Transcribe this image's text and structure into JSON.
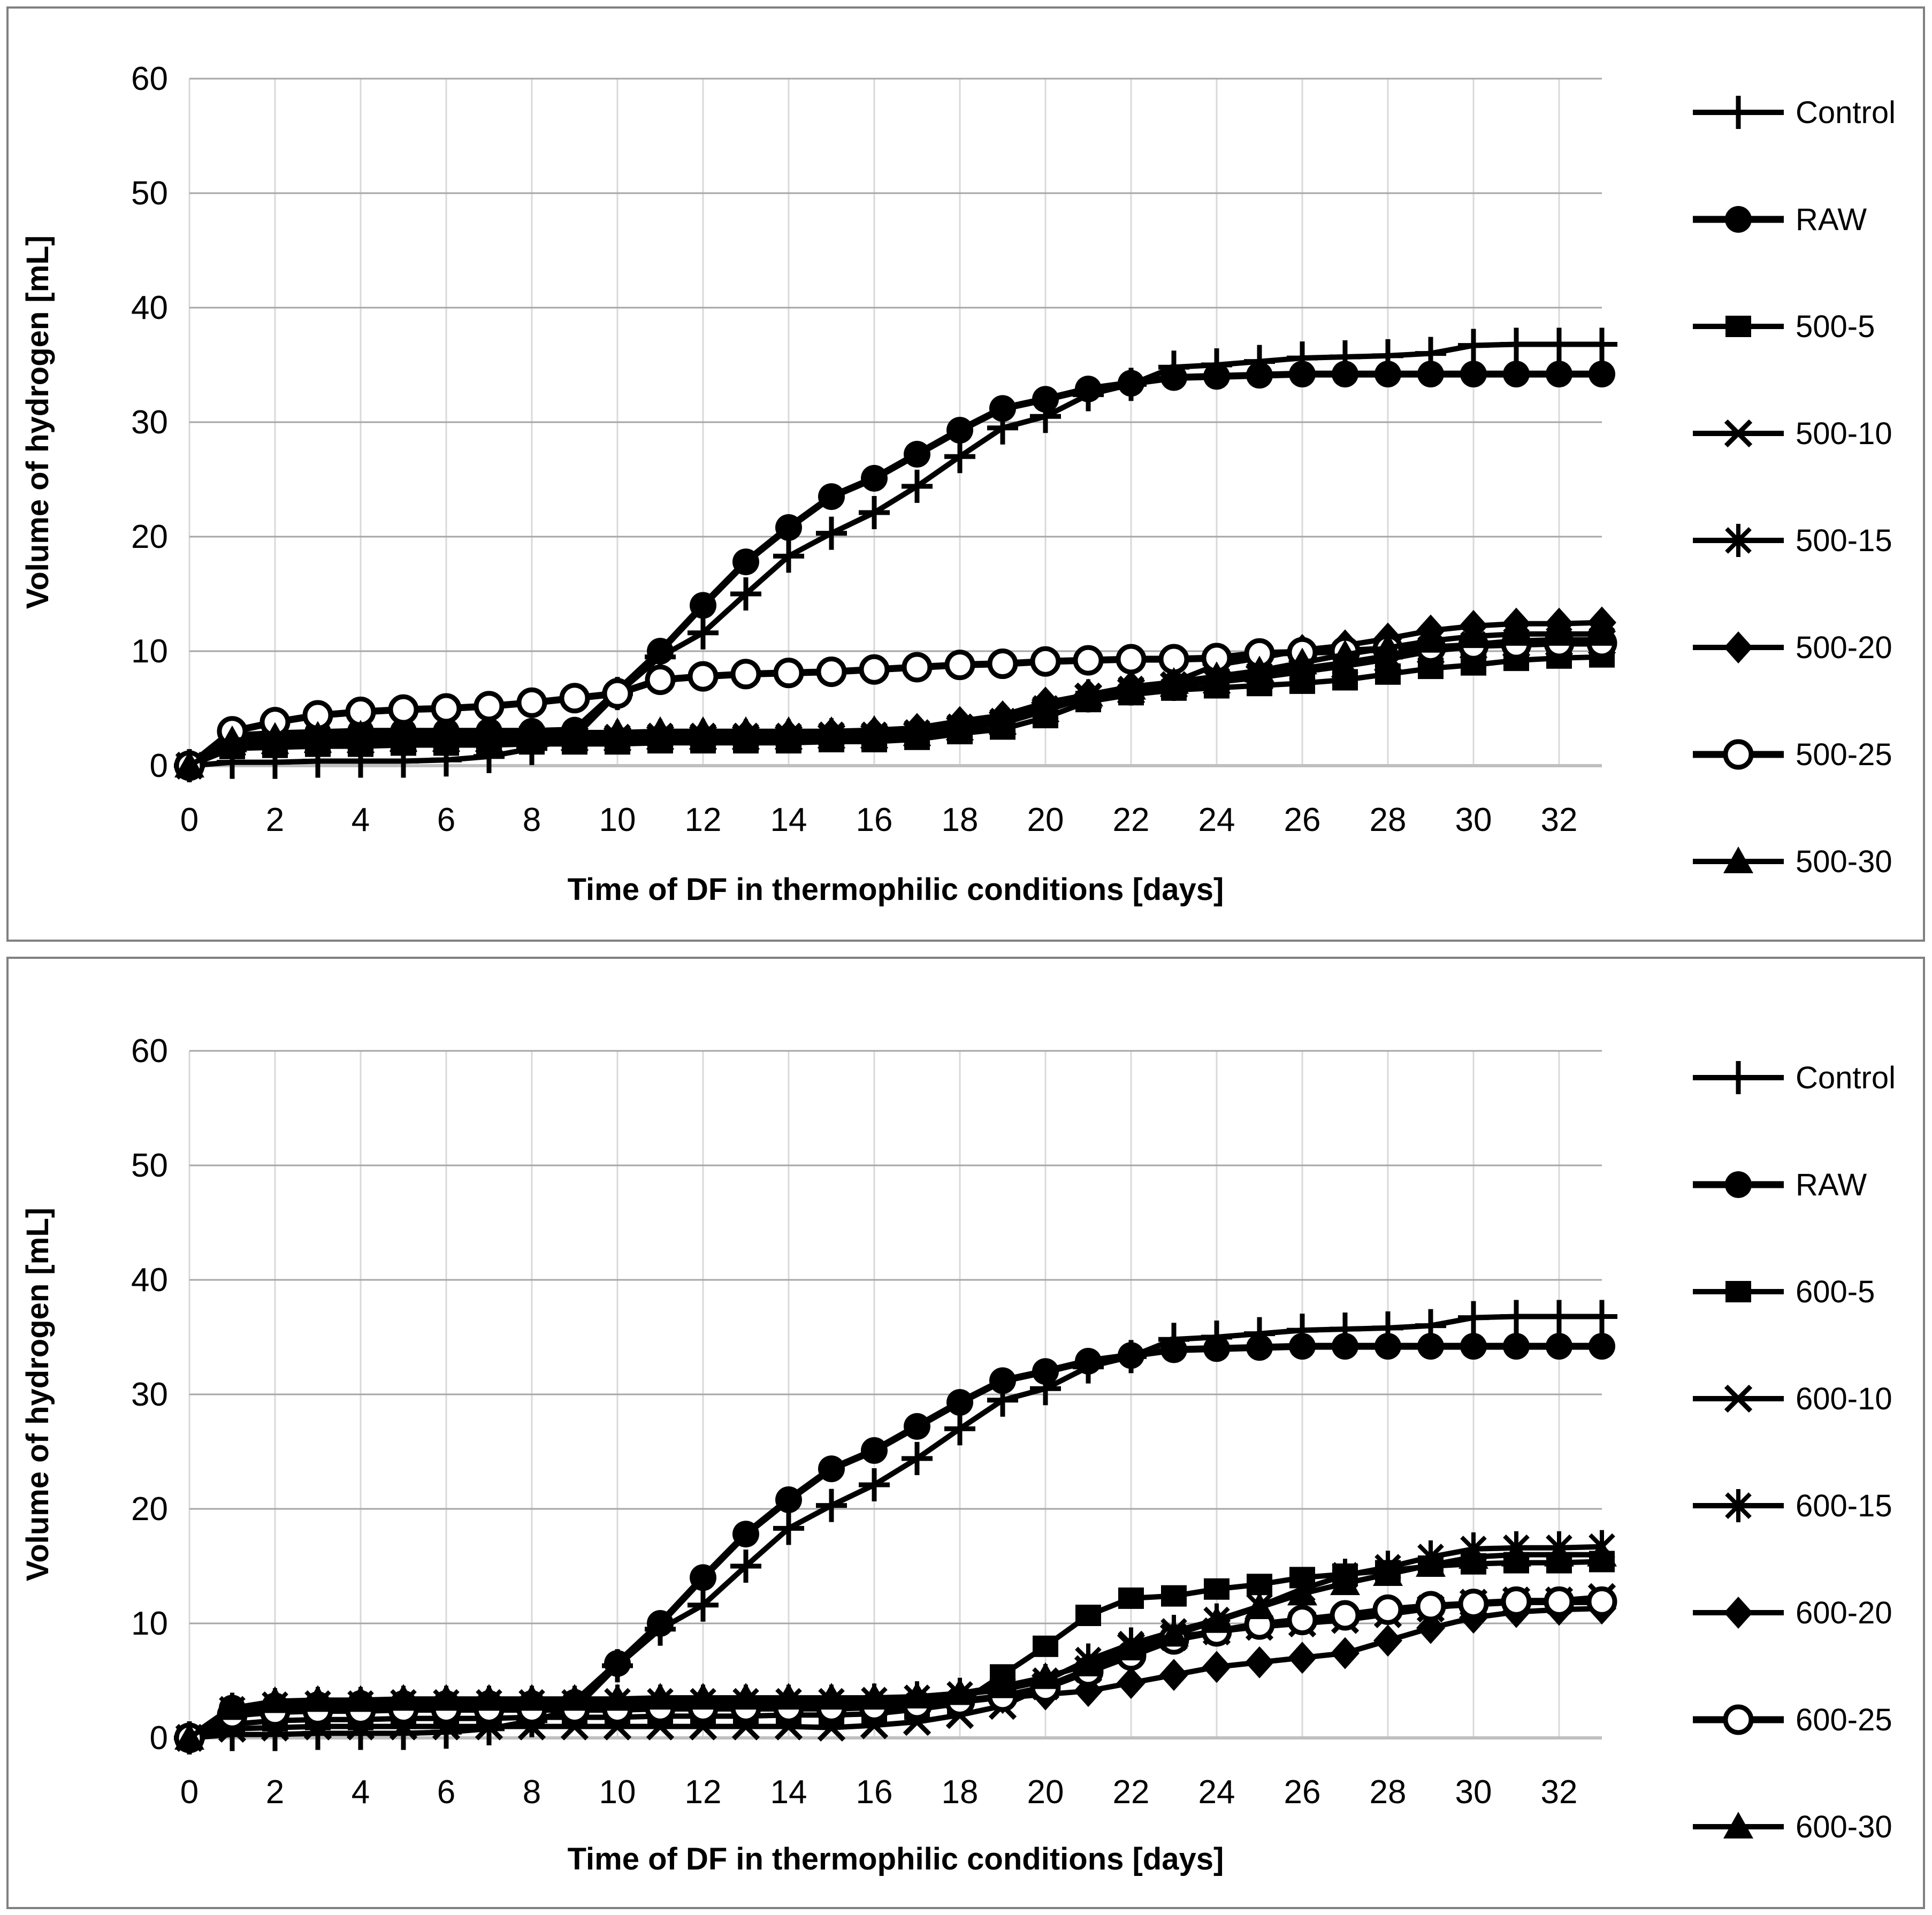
{
  "page": {
    "background": "#ffffff",
    "panel_border_color": "#808080",
    "series_color": "#000000",
    "grid_vertical_color": "#d9d9d9",
    "grid_horizontal_color": "#a6a6a6",
    "axis_zero_line_color": "#bfbfbf"
  },
  "chart_data": [
    {
      "type": "line",
      "title": "",
      "xlabel": "Time of DF in thermophilic conditions [days]",
      "ylabel": "Volume of hydrogen [mL]",
      "xlim": [
        0,
        33
      ],
      "ylim": [
        0,
        60
      ],
      "xticks": [
        0,
        2,
        4,
        6,
        8,
        10,
        12,
        14,
        16,
        18,
        20,
        22,
        24,
        26,
        28,
        30,
        32
      ],
      "yticks": [
        0,
        10,
        20,
        30,
        40,
        50,
        60
      ],
      "grid": true,
      "legend_position": "right",
      "x": [
        0,
        1,
        2,
        3,
        4,
        5,
        6,
        7,
        8,
        9,
        10,
        11,
        12,
        13,
        14,
        15,
        16,
        17,
        18,
        19,
        20,
        21,
        22,
        23,
        24,
        25,
        26,
        27,
        28,
        29,
        30,
        31,
        32,
        33
      ],
      "series": [
        {
          "name": "Control",
          "marker": "plus",
          "line_width": 10,
          "values": [
            0,
            0.3,
            0.3,
            0.4,
            0.4,
            0.4,
            0.5,
            0.8,
            1.5,
            2.5,
            6.3,
            9.5,
            11.6,
            15.0,
            18.3,
            20.3,
            22.1,
            24.4,
            27.0,
            29.5,
            30.5,
            32.4,
            33.3,
            34.8,
            35.0,
            35.3,
            35.6,
            35.7,
            35.8,
            36.0,
            36.7,
            36.8,
            36.8,
            36.8
          ]
        },
        {
          "name": "RAW",
          "marker": "circle-filled",
          "line_width": 13,
          "values": [
            0,
            2.6,
            2.8,
            2.9,
            3.0,
            3.0,
            3.0,
            3.0,
            3.0,
            3.1,
            6.5,
            10.0,
            14.0,
            17.8,
            20.8,
            23.5,
            25.1,
            27.2,
            29.3,
            31.2,
            32.0,
            32.9,
            33.4,
            33.9,
            34.0,
            34.1,
            34.2,
            34.2,
            34.2,
            34.2,
            34.2,
            34.2,
            34.2,
            34.2
          ]
        },
        {
          "name": "500-5",
          "marker": "square-filled",
          "line_width": 10,
          "values": [
            0,
            1.5,
            1.6,
            1.7,
            1.7,
            1.8,
            1.8,
            1.8,
            1.9,
            1.9,
            1.9,
            2.0,
            2.0,
            2.0,
            2.0,
            2.1,
            2.1,
            2.3,
            2.8,
            3.2,
            4.2,
            5.6,
            6.2,
            6.6,
            6.8,
            7.0,
            7.2,
            7.5,
            8.0,
            8.5,
            8.8,
            9.2,
            9.4,
            9.5
          ]
        },
        {
          "name": "500-10",
          "marker": "x",
          "line_width": 10,
          "values": [
            0,
            1.9,
            2.0,
            2.1,
            2.1,
            2.2,
            2.2,
            2.2,
            2.3,
            2.3,
            2.3,
            2.4,
            2.4,
            2.4,
            2.4,
            2.5,
            2.5,
            2.7,
            3.2,
            3.7,
            4.8,
            6.0,
            6.5,
            7.0,
            7.3,
            7.7,
            8.2,
            8.7,
            9.3,
            10.0,
            10.4,
            10.6,
            10.7,
            10.8
          ]
        },
        {
          "name": "500-15",
          "marker": "asterisk",
          "line_width": 10,
          "values": [
            0,
            2.0,
            2.1,
            2.2,
            2.3,
            2.3,
            2.4,
            2.4,
            2.5,
            2.5,
            2.5,
            2.6,
            2.6,
            2.6,
            2.6,
            2.7,
            2.7,
            2.9,
            3.4,
            3.9,
            5.0,
            6.1,
            6.7,
            7.1,
            7.5,
            7.9,
            8.5,
            9.0,
            9.6,
            10.2,
            10.6,
            10.9,
            11.0,
            11.0
          ]
        },
        {
          "name": "500-20",
          "marker": "diamond-filled",
          "line_width": 10,
          "values": [
            0,
            1.8,
            2.0,
            2.1,
            2.2,
            2.2,
            2.3,
            2.3,
            2.4,
            2.4,
            2.5,
            2.6,
            2.6,
            2.7,
            2.7,
            2.8,
            2.9,
            3.2,
            3.8,
            4.3,
            5.5,
            6.2,
            6.9,
            7.3,
            8.8,
            9.4,
            10.1,
            10.5,
            11.1,
            11.8,
            12.2,
            12.4,
            12.4,
            12.5
          ]
        },
        {
          "name": "500-25",
          "marker": "circle-open",
          "line_width": 13,
          "values": [
            0,
            3.0,
            3.8,
            4.4,
            4.7,
            4.9,
            5.0,
            5.2,
            5.5,
            5.9,
            6.3,
            7.5,
            7.8,
            8.0,
            8.1,
            8.2,
            8.4,
            8.6,
            8.8,
            8.9,
            9.1,
            9.2,
            9.3,
            9.3,
            9.4,
            9.8,
            9.9,
            10.0,
            10.2,
            10.3,
            10.5,
            10.6,
            10.7,
            10.7
          ]
        },
        {
          "name": "500-30",
          "marker": "triangle-filled",
          "line_width": 10,
          "values": [
            0,
            2.2,
            2.5,
            2.6,
            2.7,
            2.7,
            2.8,
            2.8,
            2.8,
            2.9,
            2.9,
            3.0,
            3.0,
            3.0,
            3.0,
            3.0,
            3.1,
            3.3,
            3.9,
            4.4,
            5.5,
            6.2,
            6.8,
            7.3,
            7.8,
            8.3,
            9.0,
            9.7,
            10.3,
            10.9,
            11.3,
            11.5,
            11.5,
            11.5
          ]
        }
      ]
    },
    {
      "type": "line",
      "title": "",
      "xlabel": "Time of DF in thermophilic conditions [days]",
      "ylabel": "Volume of hydrogen [mL]",
      "xlim": [
        0,
        33
      ],
      "ylim": [
        0,
        60
      ],
      "xticks": [
        0,
        2,
        4,
        6,
        8,
        10,
        12,
        14,
        16,
        18,
        20,
        22,
        24,
        26,
        28,
        30,
        32
      ],
      "yticks": [
        0,
        10,
        20,
        30,
        40,
        50,
        60
      ],
      "grid": true,
      "legend_position": "right",
      "x": [
        0,
        1,
        2,
        3,
        4,
        5,
        6,
        7,
        8,
        9,
        10,
        11,
        12,
        13,
        14,
        15,
        16,
        17,
        18,
        19,
        20,
        21,
        22,
        23,
        24,
        25,
        26,
        27,
        28,
        29,
        30,
        31,
        32,
        33
      ],
      "series": [
        {
          "name": "Control",
          "marker": "plus",
          "line_width": 10,
          "values": [
            0,
            0.3,
            0.3,
            0.4,
            0.4,
            0.4,
            0.5,
            0.8,
            1.5,
            2.5,
            6.3,
            9.5,
            11.6,
            15.0,
            18.3,
            20.3,
            22.1,
            24.4,
            27.0,
            29.5,
            30.5,
            32.4,
            33.3,
            34.8,
            35.0,
            35.3,
            35.6,
            35.7,
            35.8,
            36.0,
            36.7,
            36.8,
            36.8,
            36.8
          ]
        },
        {
          "name": "RAW",
          "marker": "circle-filled",
          "line_width": 13,
          "values": [
            0,
            2.6,
            2.8,
            2.9,
            3.0,
            3.0,
            3.0,
            3.0,
            3.0,
            3.1,
            6.5,
            10.0,
            14.0,
            17.8,
            20.8,
            23.5,
            25.1,
            27.2,
            29.3,
            31.2,
            32.0,
            32.9,
            33.4,
            33.9,
            34.0,
            34.1,
            34.2,
            34.2,
            34.2,
            34.2,
            34.2,
            34.2,
            34.2,
            34.2
          ]
        },
        {
          "name": "600-5",
          "marker": "square-filled",
          "line_width": 10,
          "values": [
            0,
            1.2,
            1.5,
            1.6,
            1.6,
            1.7,
            1.7,
            1.7,
            1.8,
            1.8,
            1.8,
            1.9,
            1.9,
            1.9,
            2.0,
            2.0,
            2.1,
            2.5,
            3.0,
            5.5,
            8.0,
            10.7,
            12.2,
            12.4,
            13.0,
            13.4,
            14.0,
            14.3,
            14.6,
            15.0,
            15.2,
            15.3,
            15.3,
            15.4
          ]
        },
        {
          "name": "600-10",
          "marker": "x",
          "line_width": 10,
          "values": [
            0,
            0.8,
            0.9,
            1.0,
            1.0,
            1.0,
            1.0,
            1.0,
            1.0,
            1.0,
            1.0,
            1.0,
            1.0,
            1.0,
            1.0,
            0.9,
            1.1,
            1.4,
            2.0,
            2.8,
            4.5,
            6.0,
            8.0,
            8.8,
            9.3,
            9.7,
            10.0,
            10.3,
            10.8,
            11.3,
            11.8,
            12.0,
            12.0,
            12.3
          ]
        },
        {
          "name": "600-15",
          "marker": "asterisk",
          "line_width": 10,
          "values": [
            0,
            2.5,
            2.9,
            3.0,
            3.0,
            3.1,
            3.1,
            3.1,
            3.1,
            3.1,
            3.2,
            3.2,
            3.2,
            3.2,
            3.2,
            3.2,
            3.3,
            3.5,
            3.8,
            4.2,
            5.0,
            6.8,
            8.2,
            9.3,
            10.3,
            11.5,
            13.0,
            14.2,
            14.9,
            15.8,
            16.5,
            16.6,
            16.6,
            16.7
          ]
        },
        {
          "name": "600-20",
          "marker": "diamond-filled",
          "line_width": 10,
          "values": [
            0,
            2.3,
            2.8,
            2.9,
            2.9,
            3.0,
            3.0,
            3.0,
            3.0,
            3.0,
            3.0,
            3.1,
            3.1,
            3.1,
            3.1,
            3.1,
            3.1,
            3.2,
            3.3,
            3.5,
            3.8,
            4.1,
            4.8,
            5.5,
            6.2,
            6.6,
            7.0,
            7.4,
            8.5,
            9.6,
            10.5,
            11.0,
            11.2,
            11.3
          ]
        },
        {
          "name": "600-25",
          "marker": "circle-open",
          "line_width": 13,
          "values": [
            0,
            2.0,
            2.3,
            2.4,
            2.4,
            2.5,
            2.5,
            2.5,
            2.5,
            2.5,
            2.5,
            2.6,
            2.6,
            2.6,
            2.6,
            2.6,
            2.7,
            2.9,
            3.2,
            3.6,
            4.4,
            5.8,
            7.2,
            8.6,
            9.3,
            9.9,
            10.3,
            10.7,
            11.2,
            11.5,
            11.7,
            11.9,
            11.9,
            11.9
          ]
        },
        {
          "name": "600-30",
          "marker": "triangle-filled",
          "line_width": 10,
          "values": [
            0,
            2.6,
            3.2,
            3.3,
            3.3,
            3.4,
            3.4,
            3.4,
            3.4,
            3.4,
            3.4,
            3.5,
            3.5,
            3.5,
            3.5,
            3.5,
            3.5,
            3.6,
            3.9,
            4.5,
            5.3,
            6.4,
            7.8,
            9.0,
            10.2,
            11.4,
            12.6,
            13.5,
            14.3,
            15.1,
            15.8,
            16.0,
            16.0,
            16.0
          ]
        }
      ]
    }
  ]
}
